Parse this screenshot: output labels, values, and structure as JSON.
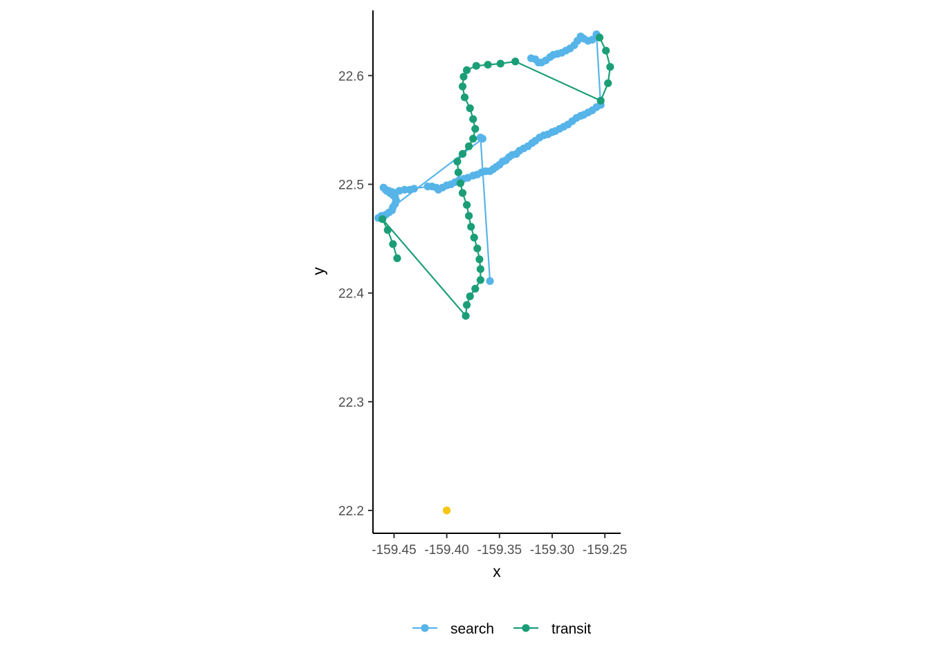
{
  "chart_data": {
    "type": "scatter",
    "xlabel": "x",
    "ylabel": "y",
    "xlim": [
      -159.47,
      -159.235
    ],
    "ylim": [
      22.179,
      22.66
    ],
    "xticks": [
      -159.45,
      -159.4,
      -159.35,
      -159.3,
      -159.25
    ],
    "xtick_labels": [
      "-159.45",
      "-159.40",
      "-159.35",
      "-159.30",
      "-159.25"
    ],
    "yticks": [
      22.2,
      22.3,
      22.4,
      22.5,
      22.6
    ],
    "ytick_labels": [
      "22.2",
      "22.3",
      "22.4",
      "22.5",
      "22.6"
    ],
    "grid": false,
    "legend": {
      "position": "bottom"
    },
    "series": [
      {
        "name": "search",
        "color": "#56B4E9",
        "connected": true,
        "points": [
          [
            -159.359,
            22.411
          ],
          [
            -159.368,
            22.543
          ],
          [
            -159.366,
            22.542
          ],
          [
            -159.465,
            22.469
          ],
          [
            -159.462,
            22.471
          ],
          [
            -159.458,
            22.472
          ],
          [
            -159.455,
            22.474
          ],
          [
            -159.452,
            22.476
          ],
          [
            -159.451,
            22.479
          ],
          [
            -159.449,
            22.482
          ],
          [
            -159.448,
            22.485
          ],
          [
            -159.449,
            22.488
          ],
          [
            -159.451,
            22.49
          ],
          [
            -159.454,
            22.492
          ],
          [
            -159.457,
            22.494
          ],
          [
            -159.46,
            22.497
          ],
          [
            -159.458,
            22.495
          ],
          [
            -159.455,
            22.494
          ],
          [
            -159.452,
            22.493
          ],
          [
            -159.449,
            22.492
          ],
          [
            -159.445,
            22.494
          ],
          [
            -159.44,
            22.495
          ],
          [
            -159.435,
            22.495
          ],
          [
            -159.431,
            22.496
          ],
          [
            -159.418,
            22.498
          ],
          [
            -159.414,
            22.498
          ],
          [
            -159.41,
            22.497
          ],
          [
            -159.408,
            22.495
          ],
          [
            -159.404,
            22.497
          ],
          [
            -159.4,
            22.499
          ],
          [
            -159.396,
            22.5
          ],
          [
            -159.392,
            22.502
          ],
          [
            -159.388,
            22.504
          ],
          [
            -159.384,
            22.505
          ],
          [
            -159.38,
            22.506
          ],
          [
            -159.375,
            22.508
          ],
          [
            -159.371,
            22.509
          ],
          [
            -159.367,
            22.511
          ],
          [
            -159.363,
            22.512
          ],
          [
            -159.359,
            22.512
          ],
          [
            -159.356,
            22.514
          ],
          [
            -159.353,
            22.516
          ],
          [
            -159.35,
            22.518
          ],
          [
            -159.347,
            22.521
          ],
          [
            -159.344,
            22.522
          ],
          [
            -159.341,
            22.525
          ],
          [
            -159.338,
            22.527
          ],
          [
            -159.334,
            22.528
          ],
          [
            -159.331,
            22.531
          ],
          [
            -159.327,
            22.533
          ],
          [
            -159.323,
            22.535
          ],
          [
            -159.319,
            22.538
          ],
          [
            -159.316,
            22.54
          ],
          [
            -159.312,
            22.543
          ],
          [
            -159.308,
            22.545
          ],
          [
            -159.304,
            22.546
          ],
          [
            -159.3,
            22.548
          ],
          [
            -159.297,
            22.549
          ],
          [
            -159.293,
            22.551
          ],
          [
            -159.289,
            22.553
          ],
          [
            -159.285,
            22.555
          ],
          [
            -159.281,
            22.558
          ],
          [
            -159.277,
            22.561
          ],
          [
            -159.273,
            22.563
          ],
          [
            -159.27,
            22.564
          ],
          [
            -159.266,
            22.566
          ],
          [
            -159.262,
            22.568
          ],
          [
            -159.258,
            22.571
          ],
          [
            -159.254,
            22.573
          ],
          [
            -159.258,
            22.638
          ],
          [
            -159.262,
            22.633
          ],
          [
            -159.266,
            22.632
          ],
          [
            -159.27,
            22.634
          ],
          [
            -159.273,
            22.636
          ],
          [
            -159.276,
            22.632
          ],
          [
            -159.279,
            22.628
          ],
          [
            -159.283,
            22.625
          ],
          [
            -159.287,
            22.623
          ],
          [
            -159.291,
            22.621
          ],
          [
            -159.295,
            22.62
          ],
          [
            -159.299,
            22.619
          ],
          [
            -159.302,
            22.617
          ],
          [
            -159.306,
            22.614
          ],
          [
            -159.31,
            22.612
          ],
          [
            -159.313,
            22.612
          ],
          [
            -159.316,
            22.615
          ],
          [
            -159.32,
            22.616
          ]
        ]
      },
      {
        "name": "transit",
        "color": "#1B9E77",
        "connected": true,
        "points": [
          [
            -159.447,
            22.432
          ],
          [
            -159.451,
            22.445
          ],
          [
            -159.456,
            22.458
          ],
          [
            -159.461,
            22.468
          ],
          [
            -159.382,
            22.379
          ],
          [
            -159.381,
            22.389
          ],
          [
            -159.378,
            22.397
          ],
          [
            -159.373,
            22.404
          ],
          [
            -159.368,
            22.412
          ],
          [
            -159.368,
            22.422
          ],
          [
            -159.369,
            22.431
          ],
          [
            -159.371,
            22.441
          ],
          [
            -159.374,
            22.451
          ],
          [
            -159.377,
            22.461
          ],
          [
            -159.379,
            22.471
          ],
          [
            -159.381,
            22.481
          ],
          [
            -159.385,
            22.492
          ],
          [
            -159.387,
            22.501
          ],
          [
            -159.389,
            22.511
          ],
          [
            -159.39,
            22.521
          ],
          [
            -159.385,
            22.528
          ],
          [
            -159.379,
            22.535
          ],
          [
            -159.375,
            22.542
          ],
          [
            -159.373,
            22.551
          ],
          [
            -159.375,
            22.56
          ],
          [
            -159.378,
            22.57
          ],
          [
            -159.383,
            22.58
          ],
          [
            -159.385,
            22.59
          ],
          [
            -159.384,
            22.599
          ],
          [
            -159.381,
            22.605
          ],
          [
            -159.372,
            22.609
          ],
          [
            -159.361,
            22.61
          ],
          [
            -159.349,
            22.611
          ],
          [
            -159.335,
            22.613
          ],
          [
            -159.254,
            22.577
          ],
          [
            -159.247,
            22.593
          ],
          [
            -159.245,
            22.608
          ],
          [
            -159.249,
            22.623
          ],
          [
            -159.255,
            22.635
          ]
        ]
      },
      {
        "name": "",
        "color": "#F5C710",
        "connected": false,
        "points": [
          [
            -159.4,
            22.2
          ]
        ]
      }
    ]
  }
}
